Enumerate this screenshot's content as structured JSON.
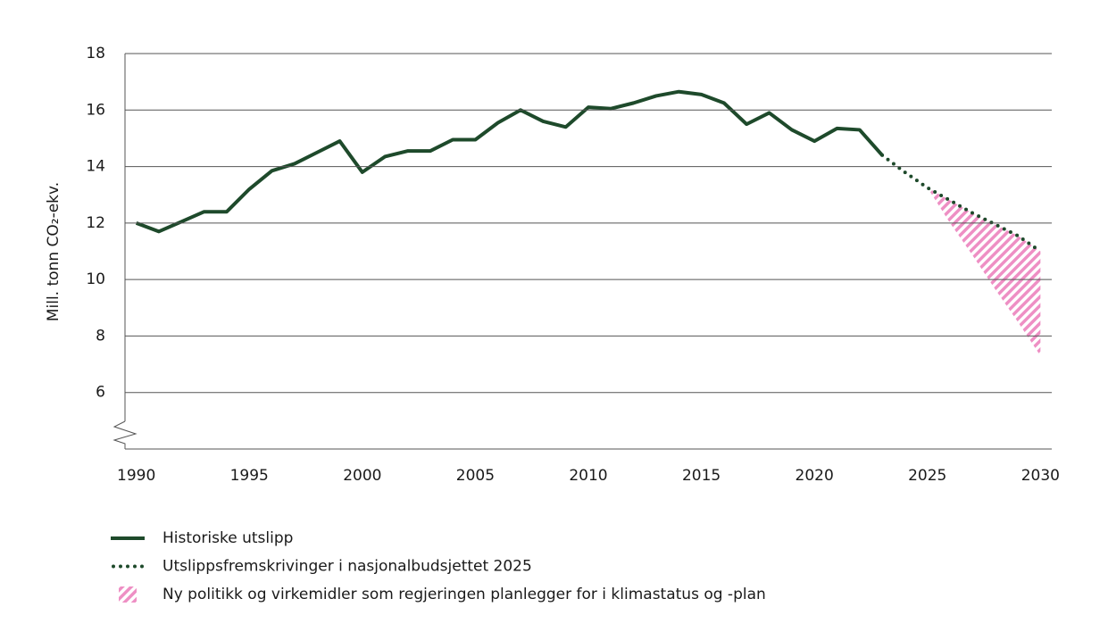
{
  "chart_data": {
    "type": "line",
    "y_label": "Mill. tonn CO₂-ekv.",
    "xlim": [
      1989.5,
      2030.5
    ],
    "xticks": [
      1990,
      1995,
      2000,
      2005,
      2010,
      2015,
      2020,
      2025,
      2030
    ],
    "ylim": [
      4,
      18
    ],
    "yticks": [
      6,
      8,
      10,
      12,
      14,
      16,
      18
    ],
    "grid": true,
    "series": [
      {
        "name": "Historiske utslipp",
        "color": "#1e4a2b",
        "style": "solid",
        "x": [
          1990,
          1991,
          1992,
          1993,
          1994,
          1995,
          1996,
          1997,
          1998,
          1999,
          2000,
          2001,
          2002,
          2003,
          2004,
          2005,
          2006,
          2007,
          2008,
          2009,
          2010,
          2011,
          2012,
          2013,
          2014,
          2015,
          2016,
          2017,
          2018,
          2019,
          2020,
          2021,
          2022,
          2023
        ],
        "values": [
          12.0,
          11.7,
          12.05,
          12.4,
          12.4,
          13.2,
          13.85,
          14.1,
          14.5,
          14.9,
          13.8,
          14.35,
          14.55,
          14.55,
          14.95,
          14.95,
          15.55,
          16.0,
          15.6,
          15.4,
          16.1,
          16.05,
          16.25,
          16.5,
          16.65,
          16.55,
          16.25,
          15.5,
          15.9,
          15.3,
          14.9,
          15.35,
          15.3,
          14.4
        ]
      },
      {
        "name": "Utslippsfremskrivinger i nasjonalbudsjettet 2025",
        "color": "#1e4a2b",
        "style": "dotted",
        "x": [
          2023,
          2024,
          2025,
          2026,
          2027,
          2028,
          2029,
          2030
        ],
        "values": [
          14.4,
          13.8,
          13.25,
          12.8,
          12.35,
          11.95,
          11.55,
          11.0
        ]
      },
      {
        "name": "Ny politikk og virkemidler som regjeringen planlegger for i klimastatus og -plan",
        "color": "#ee8fc4",
        "style": "hatch",
        "x": [
          2025,
          2026,
          2027,
          2028,
          2029,
          2030
        ],
        "values": [
          13.25,
          12.8,
          12.35,
          11.95,
          11.55,
          11.0
        ],
        "lower": [
          13.25,
          12.0,
          10.85,
          9.65,
          8.5,
          7.3
        ]
      }
    ]
  }
}
